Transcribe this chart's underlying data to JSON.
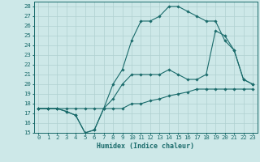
{
  "xlabel": "Humidex (Indice chaleur)",
  "bg_color": "#cde8e8",
  "line_color": "#1a6b6b",
  "grid_color": "#b0d0d0",
  "spine_color": "#1a6b6b",
  "xlim": [
    -0.5,
    23.5
  ],
  "ylim": [
    15,
    28.5
  ],
  "yticks": [
    15,
    16,
    17,
    18,
    19,
    20,
    21,
    22,
    23,
    24,
    25,
    26,
    27,
    28
  ],
  "xticks": [
    0,
    1,
    2,
    3,
    4,
    5,
    6,
    7,
    8,
    9,
    10,
    11,
    12,
    13,
    14,
    15,
    16,
    17,
    18,
    19,
    20,
    21,
    22,
    23
  ],
  "line1_x": [
    0,
    1,
    2,
    3,
    4,
    5,
    6,
    7,
    8,
    9,
    10,
    11,
    12,
    13,
    14,
    15,
    16,
    17,
    18,
    19,
    20,
    21,
    22,
    23
  ],
  "line1_y": [
    17.5,
    17.5,
    17.5,
    17.5,
    17.5,
    17.5,
    17.5,
    17.5,
    17.5,
    17.5,
    18.0,
    18.0,
    18.3,
    18.5,
    18.8,
    19.0,
    19.2,
    19.5,
    19.5,
    19.5,
    19.5,
    19.5,
    19.5,
    19.5
  ],
  "line2_x": [
    0,
    1,
    2,
    3,
    4,
    5,
    6,
    7,
    8,
    9,
    10,
    11,
    12,
    13,
    14,
    15,
    16,
    17,
    18,
    19,
    20,
    21,
    22,
    23
  ],
  "line2_y": [
    17.5,
    17.5,
    17.5,
    17.2,
    16.8,
    15.0,
    15.3,
    17.5,
    18.5,
    20.0,
    21.0,
    21.0,
    21.0,
    21.0,
    21.5,
    21.0,
    20.5,
    20.5,
    21.0,
    25.5,
    25.0,
    23.5,
    20.5,
    20.0
  ],
  "line3_x": [
    0,
    1,
    2,
    3,
    4,
    5,
    6,
    7,
    8,
    9,
    10,
    11,
    12,
    13,
    14,
    15,
    16,
    17,
    18,
    19,
    20,
    21,
    22,
    23
  ],
  "line3_y": [
    17.5,
    17.5,
    17.5,
    17.2,
    16.8,
    15.0,
    15.3,
    17.5,
    20.0,
    21.5,
    24.5,
    26.5,
    26.5,
    27.0,
    28.0,
    28.0,
    27.5,
    27.0,
    26.5,
    26.5,
    24.5,
    23.5,
    20.5,
    20.0
  ],
  "tick_labelsize": 5.2,
  "xlabel_fontsize": 6.0
}
